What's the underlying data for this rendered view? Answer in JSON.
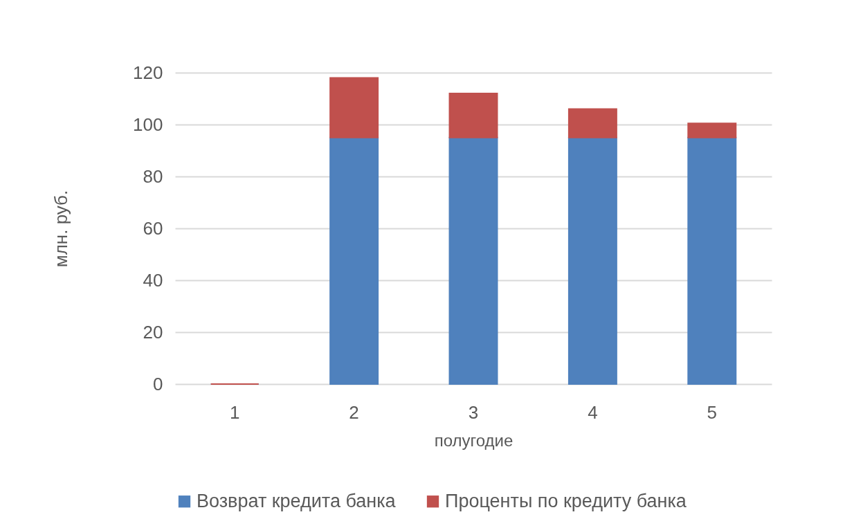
{
  "chart_data": {
    "type": "bar",
    "stacked": true,
    "xlabel": "полугодие",
    "ylabel": "млн. руб.",
    "categories": [
      "1",
      "2",
      "3",
      "4",
      "5"
    ],
    "series": [
      {
        "name": "Возврат кредита банка",
        "color": "#4f81bd",
        "values": [
          0,
          95,
          95,
          95,
          95
        ]
      },
      {
        "name": "Проценты по кредиту банка",
        "color": "#c0504d",
        "values": [
          0,
          23,
          17,
          11,
          5.5
        ]
      }
    ],
    "ylim": [
      0,
      120
    ],
    "yticks": [
      0,
      20,
      40,
      60,
      80,
      100,
      120
    ],
    "grid": "y",
    "legend": "bottom"
  }
}
